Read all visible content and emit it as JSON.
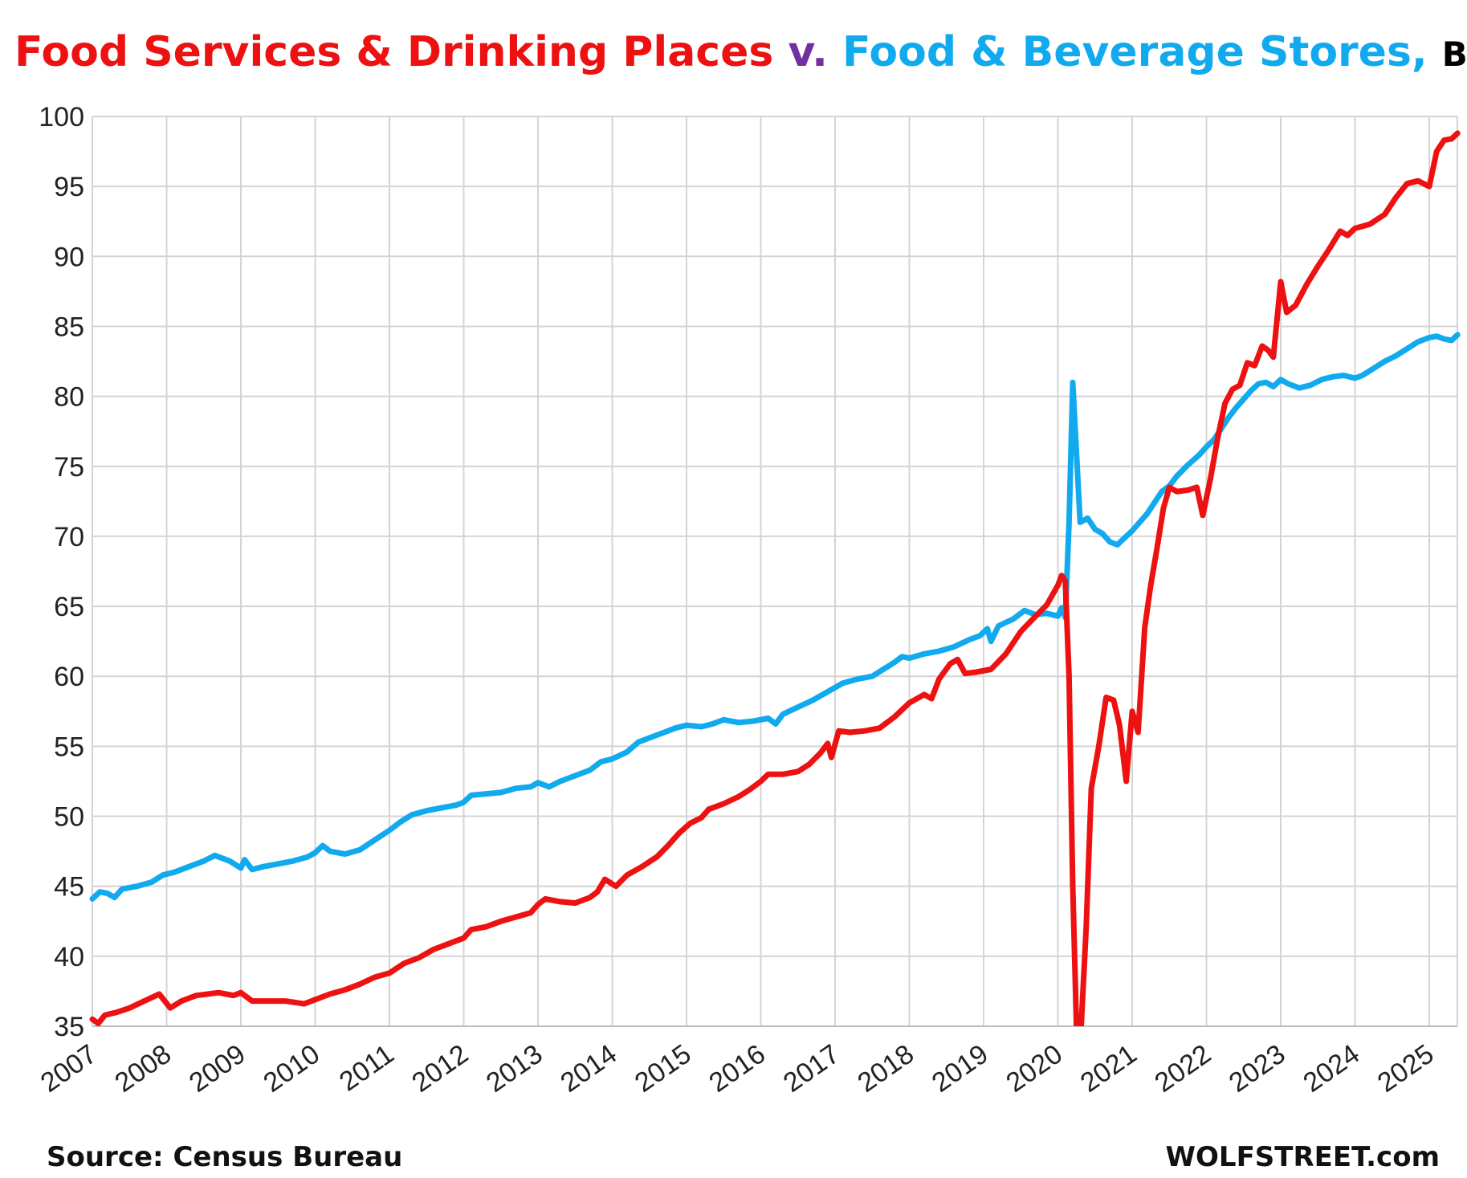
{
  "chart_data": {
    "type": "line",
    "title_parts": [
      {
        "text": "Food Services & Drinking Places ",
        "color": "#EE1111"
      },
      {
        "text": "v. ",
        "color": "#7030A0"
      },
      {
        "text": "Food & Beverage Stores, ",
        "color": "#11AAEE"
      },
      {
        "text": "Billion $",
        "color": "#000000"
      }
    ],
    "ylim": [
      35,
      100
    ],
    "yticks": [
      "35",
      "40",
      "45",
      "50",
      "55",
      "60",
      "65",
      "70",
      "75",
      "80",
      "85",
      "90",
      "95",
      "100"
    ],
    "xlim": [
      2007.0,
      2025.45
    ],
    "xticks": [
      "2007",
      "2008",
      "2009",
      "2010",
      "2011",
      "2012",
      "2013",
      "2014",
      "2015",
      "2016",
      "2017",
      "2018",
      "2019",
      "2020",
      "2021",
      "2022",
      "2023",
      "2024",
      "2025"
    ],
    "grid": true,
    "source": "Source: Census Bureau",
    "brand": "WOLFSTREET.com",
    "series": [
      {
        "name": "Food Services & Drinking Places",
        "color": "#EE1111",
        "points": [
          [
            2007.0,
            35.5
          ],
          [
            2007.08,
            35.2
          ],
          [
            2007.17,
            35.8
          ],
          [
            2007.33,
            36.0
          ],
          [
            2007.5,
            36.3
          ],
          [
            2007.7,
            36.8
          ],
          [
            2007.9,
            37.3
          ],
          [
            2008.05,
            36.3
          ],
          [
            2008.2,
            36.8
          ],
          [
            2008.4,
            37.2
          ],
          [
            2008.7,
            37.4
          ],
          [
            2008.9,
            37.2
          ],
          [
            2009.0,
            37.4
          ],
          [
            2009.15,
            36.8
          ],
          [
            2009.4,
            36.8
          ],
          [
            2009.6,
            36.8
          ],
          [
            2009.85,
            36.6
          ],
          [
            2010.0,
            36.9
          ],
          [
            2010.2,
            37.3
          ],
          [
            2010.4,
            37.6
          ],
          [
            2010.6,
            38.0
          ],
          [
            2010.8,
            38.5
          ],
          [
            2011.0,
            38.8
          ],
          [
            2011.2,
            39.5
          ],
          [
            2011.4,
            39.9
          ],
          [
            2011.6,
            40.5
          ],
          [
            2011.8,
            40.9
          ],
          [
            2012.0,
            41.3
          ],
          [
            2012.1,
            41.9
          ],
          [
            2012.3,
            42.1
          ],
          [
            2012.5,
            42.5
          ],
          [
            2012.7,
            42.8
          ],
          [
            2012.9,
            43.1
          ],
          [
            2013.0,
            43.7
          ],
          [
            2013.1,
            44.1
          ],
          [
            2013.3,
            43.9
          ],
          [
            2013.5,
            43.8
          ],
          [
            2013.7,
            44.2
          ],
          [
            2013.8,
            44.6
          ],
          [
            2013.9,
            45.5
          ],
          [
            2014.05,
            45.0
          ],
          [
            2014.2,
            45.8
          ],
          [
            2014.4,
            46.4
          ],
          [
            2014.6,
            47.1
          ],
          [
            2014.75,
            47.9
          ],
          [
            2014.9,
            48.8
          ],
          [
            2015.05,
            49.5
          ],
          [
            2015.2,
            49.9
          ],
          [
            2015.3,
            50.5
          ],
          [
            2015.5,
            50.9
          ],
          [
            2015.7,
            51.4
          ],
          [
            2015.85,
            51.9
          ],
          [
            2016.0,
            52.5
          ],
          [
            2016.1,
            53.0
          ],
          [
            2016.3,
            53.0
          ],
          [
            2016.5,
            53.2
          ],
          [
            2016.65,
            53.7
          ],
          [
            2016.8,
            54.5
          ],
          [
            2016.9,
            55.2
          ],
          [
            2016.95,
            54.2
          ],
          [
            2017.05,
            56.1
          ],
          [
            2017.2,
            56.0
          ],
          [
            2017.4,
            56.1
          ],
          [
            2017.6,
            56.3
          ],
          [
            2017.8,
            57.1
          ],
          [
            2018.0,
            58.1
          ],
          [
            2018.2,
            58.7
          ],
          [
            2018.3,
            58.4
          ],
          [
            2018.4,
            59.8
          ],
          [
            2018.55,
            60.9
          ],
          [
            2018.65,
            61.2
          ],
          [
            2018.75,
            60.2
          ],
          [
            2018.9,
            60.3
          ],
          [
            2019.1,
            60.5
          ],
          [
            2019.3,
            61.6
          ],
          [
            2019.5,
            63.2
          ],
          [
            2019.7,
            64.3
          ],
          [
            2019.85,
            65.1
          ],
          [
            2020.0,
            66.5
          ],
          [
            2020.05,
            67.2
          ],
          [
            2020.1,
            66.8
          ],
          [
            2020.15,
            60.0
          ],
          [
            2020.2,
            45.0
          ],
          [
            2020.25,
            35.0
          ],
          [
            2020.3,
            33.5
          ],
          [
            2020.38,
            42.0
          ],
          [
            2020.45,
            52.0
          ],
          [
            2020.55,
            55.0
          ],
          [
            2020.65,
            58.5
          ],
          [
            2020.75,
            58.3
          ],
          [
            2020.83,
            56.5
          ],
          [
            2020.92,
            52.5
          ],
          [
            2021.0,
            57.5
          ],
          [
            2021.08,
            56.0
          ],
          [
            2021.17,
            63.5
          ],
          [
            2021.25,
            66.5
          ],
          [
            2021.33,
            69.0
          ],
          [
            2021.42,
            72.0
          ],
          [
            2021.5,
            73.5
          ],
          [
            2021.6,
            73.2
          ],
          [
            2021.75,
            73.3
          ],
          [
            2021.87,
            73.5
          ],
          [
            2021.95,
            71.5
          ],
          [
            2022.05,
            74.0
          ],
          [
            2022.15,
            77.0
          ],
          [
            2022.25,
            79.5
          ],
          [
            2022.35,
            80.5
          ],
          [
            2022.45,
            80.8
          ],
          [
            2022.55,
            82.4
          ],
          [
            2022.65,
            82.2
          ],
          [
            2022.75,
            83.6
          ],
          [
            2022.83,
            83.3
          ],
          [
            2022.9,
            82.8
          ],
          [
            2023.0,
            88.2
          ],
          [
            2023.08,
            86.0
          ],
          [
            2023.2,
            86.5
          ],
          [
            2023.35,
            88.0
          ],
          [
            2023.5,
            89.3
          ],
          [
            2023.65,
            90.5
          ],
          [
            2023.8,
            91.8
          ],
          [
            2023.9,
            91.5
          ],
          [
            2024.0,
            92.0
          ],
          [
            2024.2,
            92.3
          ],
          [
            2024.4,
            93.0
          ],
          [
            2024.55,
            94.2
          ],
          [
            2024.7,
            95.2
          ],
          [
            2024.85,
            95.4
          ],
          [
            2025.0,
            95.0
          ],
          [
            2025.1,
            97.5
          ],
          [
            2025.2,
            98.3
          ],
          [
            2025.3,
            98.4
          ],
          [
            2025.38,
            98.8
          ]
        ]
      },
      {
        "name": "Food & Beverage Stores",
        "color": "#11AAEE",
        "points": [
          [
            2007.0,
            44.1
          ],
          [
            2007.1,
            44.6
          ],
          [
            2007.2,
            44.5
          ],
          [
            2007.3,
            44.2
          ],
          [
            2007.4,
            44.8
          ],
          [
            2007.6,
            45.0
          ],
          [
            2007.8,
            45.3
          ],
          [
            2007.95,
            45.8
          ],
          [
            2008.1,
            46.0
          ],
          [
            2008.3,
            46.4
          ],
          [
            2008.5,
            46.8
          ],
          [
            2008.65,
            47.2
          ],
          [
            2008.85,
            46.8
          ],
          [
            2009.0,
            46.3
          ],
          [
            2009.05,
            46.9
          ],
          [
            2009.15,
            46.2
          ],
          [
            2009.3,
            46.4
          ],
          [
            2009.5,
            46.6
          ],
          [
            2009.7,
            46.8
          ],
          [
            2009.9,
            47.1
          ],
          [
            2010.0,
            47.4
          ],
          [
            2010.1,
            47.9
          ],
          [
            2010.2,
            47.5
          ],
          [
            2010.4,
            47.3
          ],
          [
            2010.6,
            47.6
          ],
          [
            2010.8,
            48.3
          ],
          [
            2011.0,
            49.0
          ],
          [
            2011.15,
            49.6
          ],
          [
            2011.3,
            50.1
          ],
          [
            2011.5,
            50.4
          ],
          [
            2011.7,
            50.6
          ],
          [
            2011.9,
            50.8
          ],
          [
            2012.0,
            51.0
          ],
          [
            2012.1,
            51.5
          ],
          [
            2012.3,
            51.6
          ],
          [
            2012.5,
            51.7
          ],
          [
            2012.7,
            52.0
          ],
          [
            2012.9,
            52.1
          ],
          [
            2013.0,
            52.4
          ],
          [
            2013.15,
            52.1
          ],
          [
            2013.3,
            52.5
          ],
          [
            2013.5,
            52.9
          ],
          [
            2013.7,
            53.3
          ],
          [
            2013.85,
            53.9
          ],
          [
            2014.0,
            54.1
          ],
          [
            2014.2,
            54.6
          ],
          [
            2014.35,
            55.3
          ],
          [
            2014.5,
            55.6
          ],
          [
            2014.7,
            56.0
          ],
          [
            2014.85,
            56.3
          ],
          [
            2015.0,
            56.5
          ],
          [
            2015.2,
            56.4
          ],
          [
            2015.35,
            56.6
          ],
          [
            2015.5,
            56.9
          ],
          [
            2015.7,
            56.7
          ],
          [
            2015.9,
            56.8
          ],
          [
            2016.1,
            57.0
          ],
          [
            2016.2,
            56.6
          ],
          [
            2016.3,
            57.3
          ],
          [
            2016.5,
            57.8
          ],
          [
            2016.7,
            58.3
          ],
          [
            2016.9,
            58.9
          ],
          [
            2017.1,
            59.5
          ],
          [
            2017.3,
            59.8
          ],
          [
            2017.5,
            60.0
          ],
          [
            2017.65,
            60.5
          ],
          [
            2017.8,
            61.0
          ],
          [
            2017.9,
            61.4
          ],
          [
            2018.0,
            61.3
          ],
          [
            2018.2,
            61.6
          ],
          [
            2018.4,
            61.8
          ],
          [
            2018.6,
            62.1
          ],
          [
            2018.8,
            62.6
          ],
          [
            2018.95,
            62.9
          ],
          [
            2019.05,
            63.4
          ],
          [
            2019.1,
            62.5
          ],
          [
            2019.2,
            63.6
          ],
          [
            2019.4,
            64.1
          ],
          [
            2019.55,
            64.7
          ],
          [
            2019.7,
            64.4
          ],
          [
            2019.85,
            64.5
          ],
          [
            2020.0,
            64.3
          ],
          [
            2020.05,
            64.9
          ],
          [
            2020.1,
            64.2
          ],
          [
            2020.15,
            71.0
          ],
          [
            2020.2,
            81.0
          ],
          [
            2020.25,
            76.0
          ],
          [
            2020.3,
            71.0
          ],
          [
            2020.4,
            71.3
          ],
          [
            2020.5,
            70.5
          ],
          [
            2020.6,
            70.2
          ],
          [
            2020.7,
            69.6
          ],
          [
            2020.8,
            69.4
          ],
          [
            2020.9,
            69.9
          ],
          [
            2021.0,
            70.4
          ],
          [
            2021.1,
            71.0
          ],
          [
            2021.2,
            71.6
          ],
          [
            2021.3,
            72.4
          ],
          [
            2021.4,
            73.2
          ],
          [
            2021.5,
            73.6
          ],
          [
            2021.6,
            74.3
          ],
          [
            2021.75,
            75.1
          ],
          [
            2021.9,
            75.8
          ],
          [
            2022.0,
            76.4
          ],
          [
            2022.1,
            76.9
          ],
          [
            2022.2,
            77.7
          ],
          [
            2022.3,
            78.5
          ],
          [
            2022.4,
            79.2
          ],
          [
            2022.5,
            79.8
          ],
          [
            2022.6,
            80.4
          ],
          [
            2022.7,
            80.9
          ],
          [
            2022.8,
            81.0
          ],
          [
            2022.9,
            80.7
          ],
          [
            2023.0,
            81.2
          ],
          [
            2023.1,
            80.9
          ],
          [
            2023.25,
            80.6
          ],
          [
            2023.4,
            80.8
          ],
          [
            2023.55,
            81.2
          ],
          [
            2023.7,
            81.4
          ],
          [
            2023.85,
            81.5
          ],
          [
            2024.0,
            81.3
          ],
          [
            2024.1,
            81.5
          ],
          [
            2024.25,
            82.0
          ],
          [
            2024.4,
            82.5
          ],
          [
            2024.55,
            82.9
          ],
          [
            2024.7,
            83.4
          ],
          [
            2024.85,
            83.9
          ],
          [
            2025.0,
            84.2
          ],
          [
            2025.1,
            84.3
          ],
          [
            2025.2,
            84.1
          ],
          [
            2025.3,
            84.0
          ],
          [
            2025.38,
            84.4
          ]
        ]
      }
    ]
  }
}
